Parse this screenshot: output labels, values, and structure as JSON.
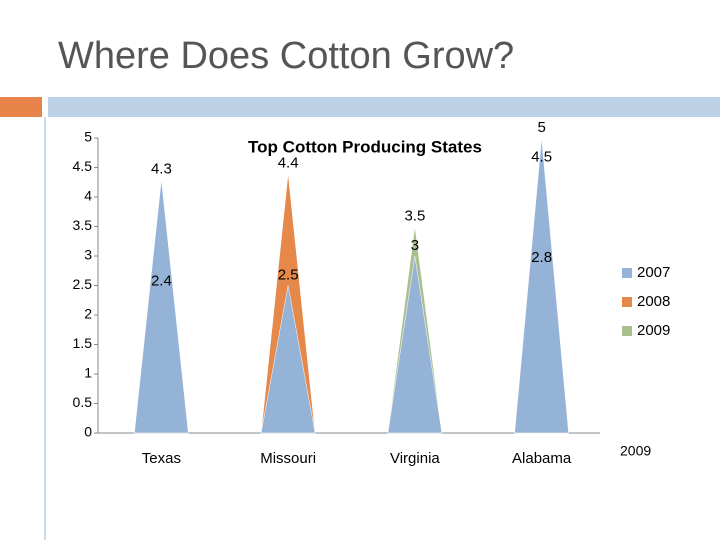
{
  "slide": {
    "title": "Where Does Cotton Grow?"
  },
  "chart_data": {
    "type": "cone",
    "title": "Top Cotton Producing States",
    "categories": [
      "Texas",
      "Missouri",
      "Virginia",
      "Alabama"
    ],
    "series": [
      {
        "name": "2007",
        "color": "#95b3d7",
        "values": [
          4.3,
          2.5,
          3,
          5
        ]
      },
      {
        "name": "2008",
        "color": "#e6884a",
        "values": [
          2.4,
          4.4,
          null,
          2.8
        ]
      },
      {
        "name": "2009",
        "color": "#a9bf8c",
        "values": [
          null,
          null,
          3.5,
          4.5
        ]
      }
    ],
    "x_title": "2009",
    "ylim": [
      0,
      5
    ],
    "yticks": [
      0,
      0.5,
      1,
      1.5,
      2,
      2.5,
      3,
      3.5,
      4,
      4.5,
      5
    ],
    "legend": "right"
  }
}
